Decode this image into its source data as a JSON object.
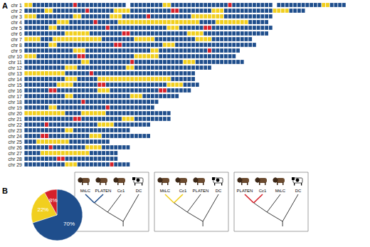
{
  "chart_data": [
    {
      "type": "segments",
      "panel": "A",
      "tick_labels": "y",
      "xlim": [
        0,
        80
      ],
      "categories": [
        "chr 1",
        "chr 2",
        "chr 3",
        "chr 4",
        "chr 5",
        "chr 6",
        "chr 7",
        "chr 8",
        "chr 9",
        "chr 10",
        "chr 11",
        "chr 12",
        "chr 13",
        "chr 14",
        "chr 15",
        "chr 16",
        "chr 17",
        "chr 18",
        "chr 19",
        "chr 20",
        "chr 21",
        "chr 22",
        "chr 23",
        "chr 24",
        "chr 25",
        "chr 26",
        "chr 27",
        "chr 28",
        "chr 29"
      ],
      "topologies": [
        {
          "color": "#1f4e8c",
          "leaves": [
            "MtLC",
            "PLATEN",
            "Cc1",
            "DC"
          ]
        },
        {
          "color": "#f1cf1f",
          "leaves": [
            "MtLC",
            "Cc1",
            "PLATEN",
            "DC"
          ]
        },
        {
          "color": "#d6202a",
          "leaves": [
            "PLATEN",
            "Cc1",
            "MtLC",
            "DC"
          ]
        }
      ],
      "runs": [
        [
          [
            1,
            2
          ],
          [
            0,
            10
          ],
          [
            2,
            1
          ],
          [
            0,
            12
          ],
          [
            null,
            1
          ],
          [
            0,
            8
          ],
          [
            1,
            2
          ],
          [
            0,
            14
          ],
          [
            2,
            1
          ],
          [
            0,
            10
          ],
          [
            null,
            1
          ],
          [
            0,
            11
          ],
          [
            1,
            2
          ],
          [
            0,
            4
          ]
        ],
        [
          [
            0,
            5
          ],
          [
            1,
            2
          ],
          [
            0,
            8
          ],
          [
            2,
            1
          ],
          [
            0,
            6
          ],
          [
            1,
            4
          ],
          [
            0,
            10
          ],
          [
            2,
            2
          ],
          [
            0,
            8
          ],
          [
            1,
            3
          ],
          [
            0,
            12
          ],
          [
            1,
            4
          ],
          [
            0,
            4
          ]
        ],
        [
          [
            1,
            3
          ],
          [
            0,
            9
          ],
          [
            1,
            2
          ],
          [
            0,
            7
          ],
          [
            1,
            3
          ],
          [
            0,
            6
          ],
          [
            2,
            1
          ],
          [
            0,
            10
          ],
          [
            1,
            8
          ],
          [
            0,
            12
          ]
        ],
        [
          [
            0,
            8
          ],
          [
            1,
            3
          ],
          [
            0,
            6
          ],
          [
            2,
            1
          ],
          [
            0,
            5
          ],
          [
            1,
            20
          ],
          [
            0,
            4
          ],
          [
            1,
            8
          ],
          [
            0,
            5
          ]
        ],
        [
          [
            0,
            6
          ],
          [
            1,
            2
          ],
          [
            0,
            12
          ],
          [
            2,
            1
          ],
          [
            0,
            14
          ],
          [
            1,
            3
          ],
          [
            0,
            6
          ],
          [
            2,
            2
          ],
          [
            0,
            15
          ]
        ],
        [
          [
            0,
            10
          ],
          [
            1,
            6
          ],
          [
            0,
            8
          ],
          [
            2,
            2
          ],
          [
            0,
            14
          ],
          [
            1,
            4
          ],
          [
            0,
            16
          ]
        ],
        [
          [
            1,
            4
          ],
          [
            0,
            3
          ],
          [
            1,
            12
          ],
          [
            0,
            8
          ],
          [
            1,
            5
          ],
          [
            0,
            10
          ],
          [
            1,
            4
          ],
          [
            0,
            10
          ]
        ],
        [
          [
            0,
            6
          ],
          [
            1,
            2
          ],
          [
            0,
            14
          ],
          [
            2,
            2
          ],
          [
            0,
            10
          ],
          [
            1,
            3
          ],
          [
            0,
            20
          ]
        ],
        [
          [
            0,
            12
          ],
          [
            1,
            3
          ],
          [
            0,
            16
          ],
          [
            1,
            2
          ],
          [
            0,
            12
          ],
          [
            2,
            1
          ],
          [
            0,
            7
          ]
        ],
        [
          [
            1,
            3
          ],
          [
            0,
            10
          ],
          [
            2,
            2
          ],
          [
            0,
            12
          ],
          [
            1,
            6
          ],
          [
            0,
            19
          ]
        ],
        [
          [
            0,
            14
          ],
          [
            1,
            2
          ],
          [
            0,
            10
          ],
          [
            2,
            1
          ],
          [
            0,
            12
          ],
          [
            1,
            3
          ],
          [
            0,
            12
          ]
        ],
        [
          [
            0,
            10
          ],
          [
            1,
            3
          ],
          [
            0,
            12
          ],
          [
            1,
            2
          ],
          [
            0,
            19
          ]
        ],
        [
          [
            1,
            10
          ],
          [
            0,
            6
          ],
          [
            2,
            1
          ],
          [
            0,
            25
          ]
        ],
        [
          [
            0,
            10
          ],
          [
            1,
            3
          ],
          [
            0,
            5
          ],
          [
            1,
            18
          ],
          [
            0,
            6
          ]
        ],
        [
          [
            0,
            8
          ],
          [
            1,
            4
          ],
          [
            0,
            6
          ],
          [
            2,
            2
          ],
          [
            0,
            15
          ],
          [
            1,
            4
          ],
          [
            0,
            4
          ]
        ],
        [
          [
            0,
            6
          ],
          [
            2,
            2
          ],
          [
            0,
            10
          ],
          [
            1,
            3
          ],
          [
            0,
            12
          ],
          [
            2,
            2
          ],
          [
            0,
            6
          ]
        ],
        [
          [
            0,
            10
          ],
          [
            1,
            2
          ],
          [
            0,
            14
          ],
          [
            1,
            3
          ],
          [
            0,
            9
          ]
        ],
        [
          [
            0,
            14
          ],
          [
            2,
            1
          ],
          [
            0,
            18
          ]
        ],
        [
          [
            0,
            6
          ],
          [
            1,
            2
          ],
          [
            0,
            12
          ],
          [
            2,
            1
          ],
          [
            0,
            11
          ]
        ],
        [
          [
            1,
            10
          ],
          [
            0,
            4
          ],
          [
            1,
            6
          ],
          [
            0,
            16
          ]
        ],
        [
          [
            0,
            12
          ],
          [
            2,
            2
          ],
          [
            0,
            10
          ],
          [
            1,
            3
          ],
          [
            0,
            9
          ]
        ],
        [
          [
            0,
            5
          ],
          [
            2,
            1
          ],
          [
            0,
            12
          ],
          [
            1,
            4
          ],
          [
            0,
            9
          ]
        ],
        [
          [
            0,
            10
          ],
          [
            1,
            2
          ],
          [
            0,
            14
          ]
        ],
        [
          [
            0,
            4
          ],
          [
            2,
            2
          ],
          [
            0,
            10
          ],
          [
            1,
            3
          ],
          [
            0,
            12
          ]
        ],
        [
          [
            0,
            3
          ],
          [
            1,
            8
          ],
          [
            0,
            10
          ]
        ],
        [
          [
            0,
            6
          ],
          [
            2,
            1
          ],
          [
            0,
            8
          ],
          [
            1,
            4
          ],
          [
            0,
            7
          ]
        ],
        [
          [
            0,
            4
          ],
          [
            1,
            12
          ],
          [
            0,
            7
          ]
        ],
        [
          [
            0,
            8
          ],
          [
            2,
            2
          ],
          [
            0,
            13
          ]
        ],
        [
          [
            0,
            10
          ],
          [
            1,
            3
          ],
          [
            0,
            8
          ],
          [
            2,
            1
          ],
          [
            0,
            4
          ]
        ]
      ]
    },
    {
      "type": "pie",
      "panel": "B",
      "values": [
        70,
        22,
        8
      ],
      "value_labels": [
        "70%",
        "22%",
        "8%"
      ],
      "colors": [
        "#1f4e8c",
        "#f1cf1f",
        "#d6202a"
      ]
    }
  ]
}
